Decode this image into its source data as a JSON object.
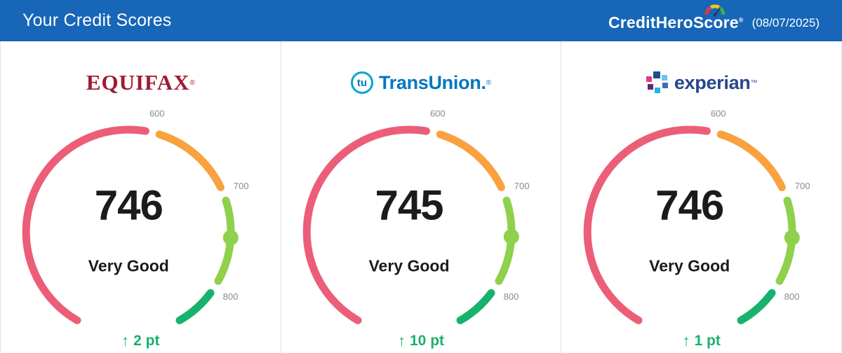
{
  "colors": {
    "header_bg": "#1766B8",
    "delta_green": "#17B26C",
    "tick_gray": "#8A8A8A"
  },
  "header": {
    "title": "Your Credit Scores",
    "brand": "CreditHeroScore",
    "brand_mark": "®",
    "date": "(08/07/2025)"
  },
  "icons": {
    "up_arrow": "↑"
  },
  "chart_data": [
    {
      "type": "gauge",
      "bureau": "Equifax",
      "logo_text": "EQUIFAX",
      "logo_mark": "®",
      "score": 746,
      "score_label": "Very Good",
      "delta": "2 pt",
      "delta_direction": "up",
      "min": 300,
      "max": 850,
      "ticks": [
        600,
        700,
        800
      ],
      "segment_colors": [
        "#EC5E78",
        "#F9A23F",
        "#8FD04C",
        "#17B26C"
      ],
      "knob_color": "#8FD04C"
    },
    {
      "type": "gauge",
      "bureau": "TransUnion",
      "logo_icon_text": "tu",
      "logo_text": "TransUnion.",
      "logo_mark": "®",
      "score": 745,
      "score_label": "Very Good",
      "delta": "10 pt",
      "delta_direction": "up",
      "min": 300,
      "max": 850,
      "ticks": [
        600,
        700,
        800
      ],
      "segment_colors": [
        "#EC5E78",
        "#F9A23F",
        "#8FD04C",
        "#17B26C"
      ],
      "knob_color": "#8FD04C"
    },
    {
      "type": "gauge",
      "bureau": "Experian",
      "logo_text": "experian",
      "logo_mark": "™",
      "score": 746,
      "score_label": "Very Good",
      "delta": "1 pt",
      "delta_direction": "up",
      "min": 300,
      "max": 850,
      "ticks": [
        600,
        700,
        800
      ],
      "segment_colors": [
        "#EC5E78",
        "#F9A23F",
        "#8FD04C",
        "#17B26C"
      ],
      "knob_color": "#8FD04C"
    }
  ]
}
